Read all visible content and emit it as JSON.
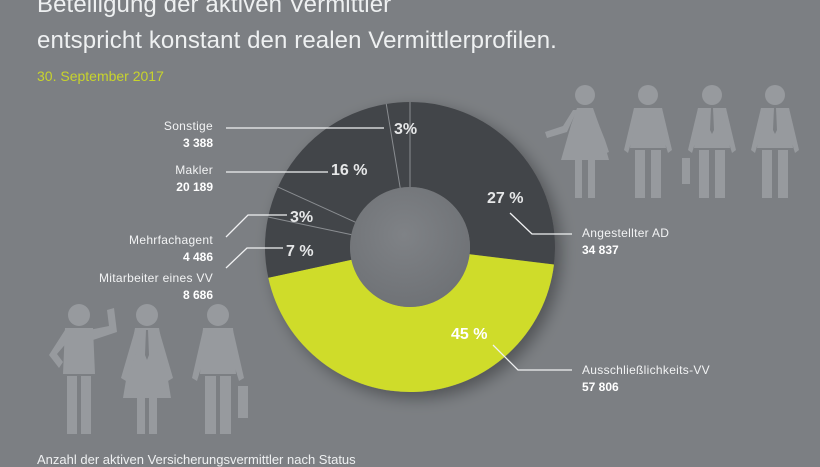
{
  "header": {
    "title_line1": "Beteiligung der aktiven Vermittler",
    "title_line2": "entspricht konstant den realen Vermittlerprofilen.",
    "date": "30. September 2017"
  },
  "footer": {
    "caption": "Anzahl der aktiven Versicherungsvermittler nach Status"
  },
  "colors": {
    "background": "#7c7f83",
    "dark_segment": "#434548",
    "accent_segment": "#cfdc2a",
    "figures": "#979a9e",
    "date": "#c8d42c"
  },
  "icons": {
    "people_top_right": [
      "woman-figure-icon",
      "man-figure-icon",
      "man-tie-briefcase-figure-icon",
      "man-tie-figure-icon"
    ],
    "people_bottom_left": [
      "man-waving-figure-icon",
      "woman-tie-figure-icon",
      "man-briefcase-figure-icon"
    ]
  },
  "chart_data": {
    "type": "pie",
    "donut": true,
    "title": "Beteiligung der aktiven Vermittler entspricht konstant den realen Vermittlerprofilen.",
    "subtitle": "30. September 2017",
    "caption": "Anzahl der aktiven Versicherungsvermittler nach Status",
    "start": "12 o'clock, clockwise",
    "slices": [
      {
        "name": "Angestellter AD",
        "value": 34837,
        "value_label": "34 837",
        "percent_label": "27 %",
        "highlight": false
      },
      {
        "name": "Ausschließlichkeits-VV",
        "value": 57806,
        "value_label": "57 806",
        "percent_label": "45 %",
        "highlight": true
      },
      {
        "name": "Mitarbeiter eines VV",
        "value": 8686,
        "value_label": "8 686",
        "percent_label": "7 %",
        "highlight": false
      },
      {
        "name": "Mehrfachagent",
        "value": 4486,
        "value_label": "4 486",
        "percent_label": "3%",
        "highlight": false
      },
      {
        "name": "Makler",
        "value": 20189,
        "value_label": "20 189",
        "percent_label": "16 %",
        "highlight": false
      },
      {
        "name": "Sonstige",
        "value": 3388,
        "value_label": "3 388",
        "percent_label": "3%",
        "highlight": false
      }
    ]
  }
}
